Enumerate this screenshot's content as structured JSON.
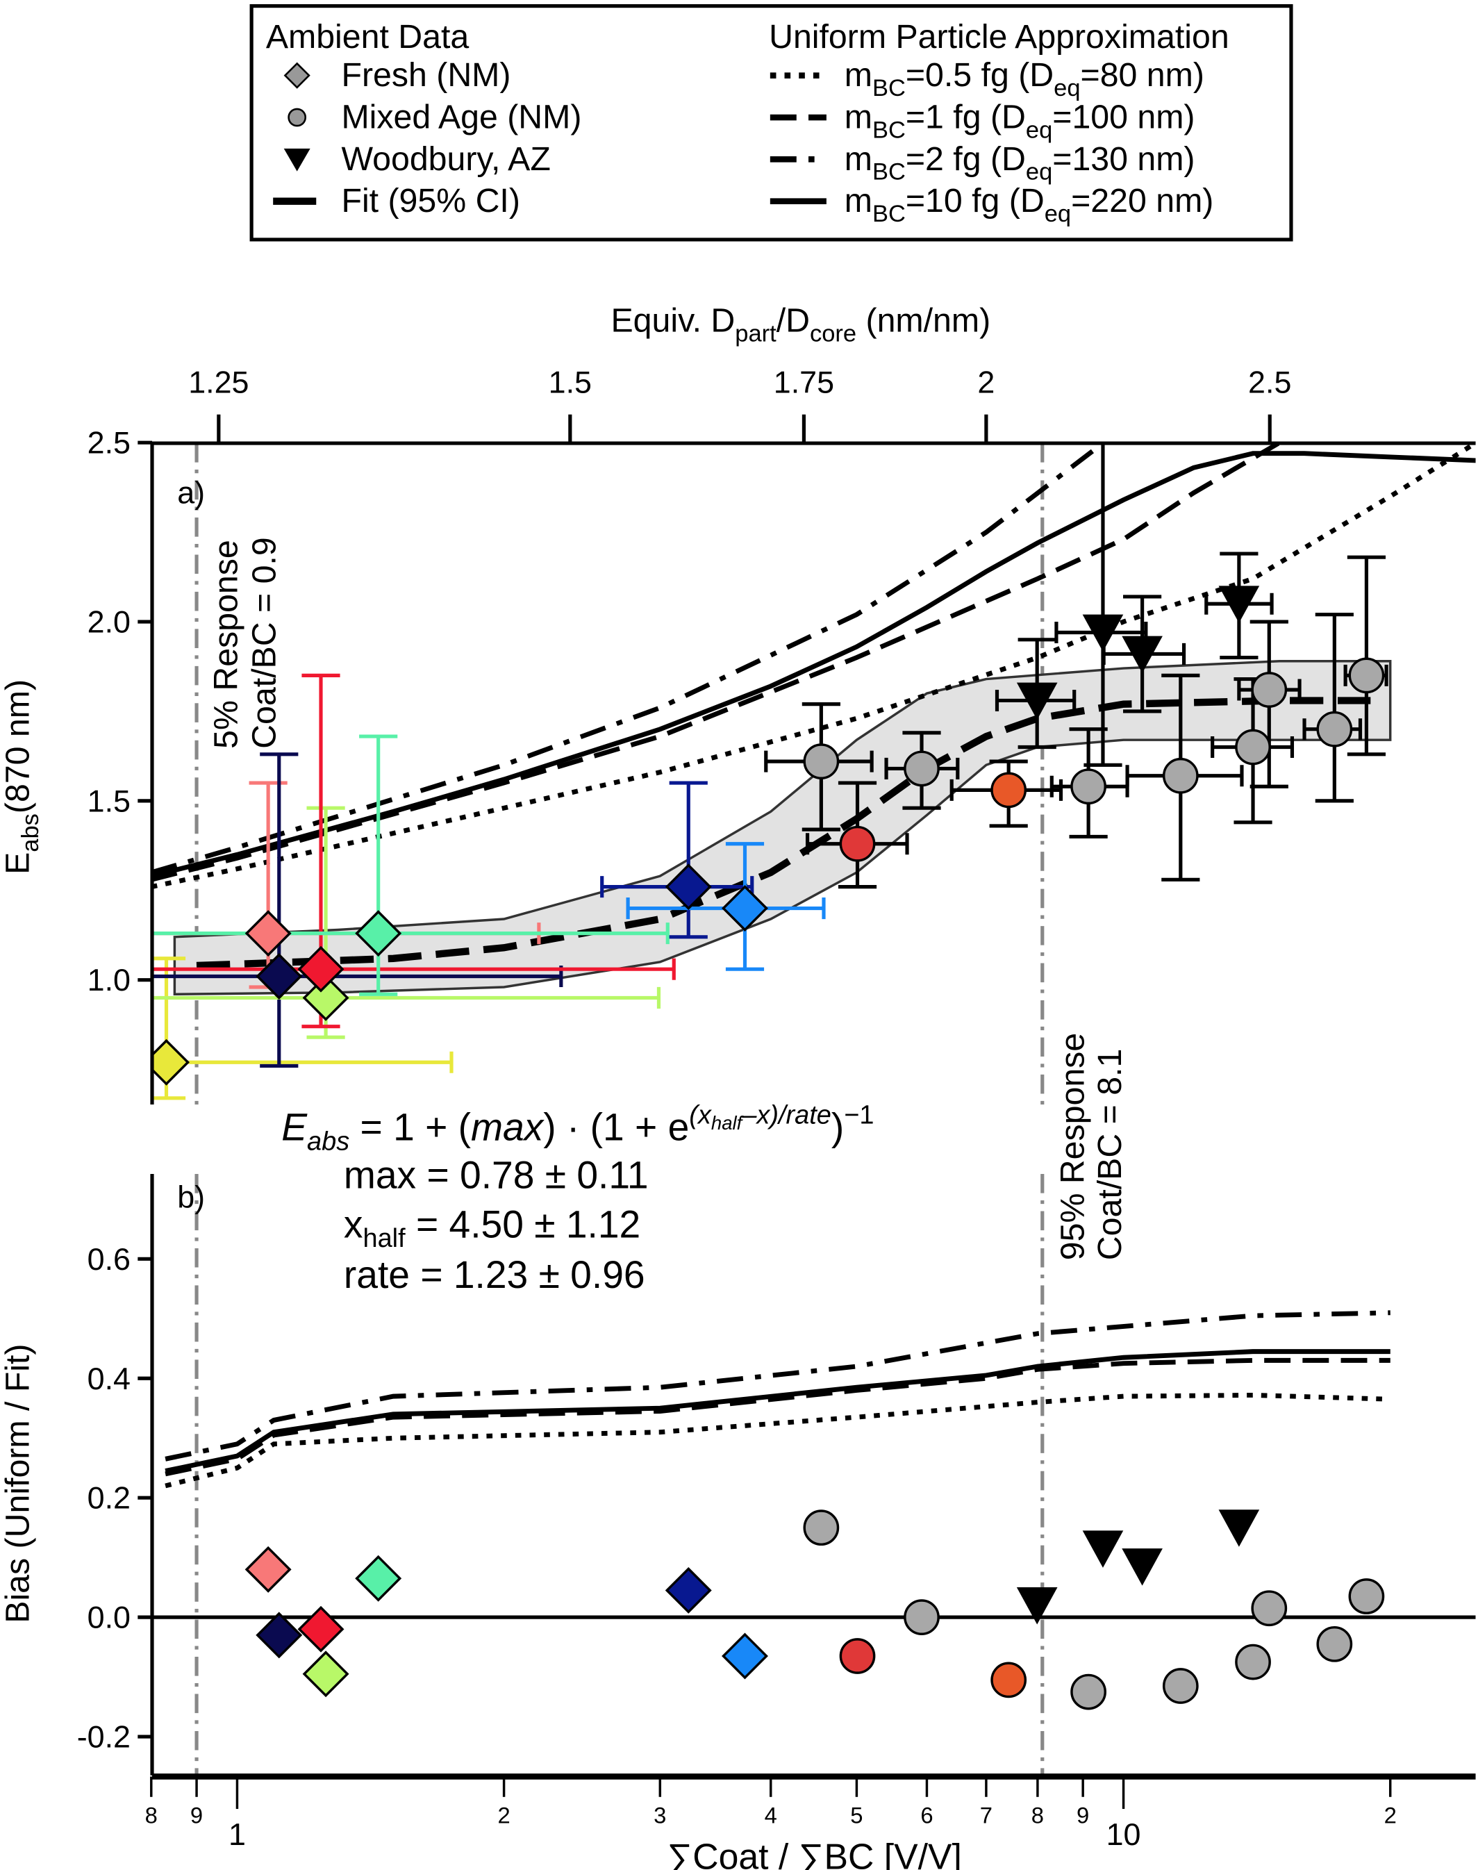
{
  "chart_data": [
    {
      "panel": "a)",
      "type": "scatter",
      "ylabel": "Eabs(870 nm)",
      "ylabel_main": "E",
      "ylabel_sub": "abs",
      "ylabel_rest": "(870 nm)",
      "ylim": [
        0.66,
        2.5
      ],
      "yticks": [
        "1.0",
        "1.5",
        "2.0",
        "2.5"
      ],
      "ytick_values": [
        1.0,
        1.5,
        2.0,
        2.5
      ],
      "xscale": "log",
      "xlim": [
        0.8,
        25
      ],
      "top_axis": {
        "label_main": "Equiv. D",
        "label_sub1": "part",
        "label_mid": "/D",
        "label_sub2": "core",
        "label_rest": " (nm/nm)",
        "ticks": [
          "1.25",
          "1.5",
          "1.75",
          "2",
          "2.5"
        ],
        "tick_values": [
          1.25,
          1.5,
          1.75,
          2,
          2.5
        ]
      },
      "annotations": {
        "low_line": {
          "x": 0.9,
          "line1": "5% Response",
          "line2": "Coat/BC = 0.9"
        },
        "high_line": {
          "x": 8.1,
          "line1": "95% Response",
          "line2": "Coat/BC = 8.1"
        }
      },
      "fresh": [
        {
          "x": 0.832,
          "y": 0.77,
          "xerr": [
            0.8,
            1.745
          ],
          "yerr": [
            0.67,
            1.06
          ],
          "color": "#e8e83a"
        },
        {
          "x": 1.084,
          "y": 1.13,
          "xerr": [
            0.8,
            2.19
          ],
          "yerr": [
            0.98,
            1.55
          ],
          "color": "#f87878"
        },
        {
          "x": 1.115,
          "y": 1.01,
          "xerr": [
            0.8,
            2.32
          ],
          "yerr": [
            0.76,
            1.63
          ],
          "color": "#0a0a50"
        },
        {
          "x": 1.259,
          "y": 0.95,
          "xerr": [
            0.8,
            2.99
          ],
          "yerr": [
            0.84,
            1.48
          ],
          "color": "#b8f868"
        },
        {
          "x": 1.243,
          "y": 1.03,
          "xerr": [
            0.8,
            3.11
          ],
          "yerr": [
            0.87,
            1.85
          ],
          "color": "#f01830"
        },
        {
          "x": 1.443,
          "y": 1.13,
          "xerr": [
            0.8,
            3.06
          ],
          "yerr": [
            0.96,
            1.68
          ],
          "color": "#58f0a8"
        },
        {
          "x": 3.23,
          "y": 1.26,
          "xerr": [
            2.58,
            3.81
          ],
          "yerr": [
            1.12,
            1.55
          ],
          "color": "#081890"
        },
        {
          "x": 3.74,
          "y": 1.2,
          "xerr": [
            2.76,
            4.59
          ],
          "yerr": [
            1.03,
            1.38
          ],
          "color": "#1888f8"
        }
      ],
      "mixed": [
        {
          "x": 4.56,
          "y": 1.61,
          "xerr": [
            3.95,
            5.2
          ],
          "yerr": [
            1.42,
            1.77
          ],
          "color": "#a8a8a8"
        },
        {
          "x": 5.01,
          "y": 1.38,
          "xerr": [
            4.4,
            5.7
          ],
          "yerr": [
            1.26,
            1.55
          ],
          "color": "#e03838"
        },
        {
          "x": 5.92,
          "y": 1.59,
          "xerr": [
            5.4,
            6.5
          ],
          "yerr": [
            1.48,
            1.69
          ],
          "color": "#a8a8a8"
        },
        {
          "x": 7.42,
          "y": 1.53,
          "xerr": [
            6.4,
            8.5
          ],
          "yerr": [
            1.43,
            1.61
          ],
          "color": "#e85828"
        },
        {
          "x": 9.13,
          "y": 1.54,
          "xerr": [
            8.3,
            10.1
          ],
          "yerr": [
            1.4,
            1.7
          ],
          "color": "#a8a8a8"
        },
        {
          "x": 11.6,
          "y": 1.57,
          "xerr": [
            10.1,
            13.6
          ],
          "yerr": [
            1.28,
            1.85
          ],
          "color": "#a8a8a8"
        },
        {
          "x": 14.0,
          "y": 1.65,
          "xerr": [
            12.6,
            15.5
          ],
          "yerr": [
            1.44,
            1.84
          ],
          "color": "#a8a8a8"
        },
        {
          "x": 14.6,
          "y": 1.81,
          "xerr": [
            13.5,
            15.8
          ],
          "yerr": [
            1.54,
            2.0
          ],
          "color": "#a8a8a8"
        },
        {
          "x": 17.3,
          "y": 1.7,
          "xerr": [
            16.0,
            18.5
          ],
          "yerr": [
            1.5,
            2.02
          ],
          "color": "#a8a8a8"
        },
        {
          "x": 18.8,
          "y": 1.85,
          "xerr": [
            17.8,
            19.8
          ],
          "yerr": [
            1.63,
            2.18
          ],
          "color": "#a8a8a8"
        }
      ],
      "woodbury": [
        {
          "x": 7.99,
          "y": 1.78,
          "xerr": [
            7.2,
            8.8
          ],
          "yerr": [
            1.65,
            1.95
          ],
          "color": "#000000"
        },
        {
          "x": 9.48,
          "y": 1.97,
          "xerr": [
            8.4,
            10.6
          ],
          "yerr": [
            1.6,
            2.5
          ],
          "color": "#000000"
        },
        {
          "x": 10.5,
          "y": 1.91,
          "xerr": [
            9.5,
            11.7
          ],
          "yerr": [
            1.75,
            2.07
          ],
          "color": "#000000"
        },
        {
          "x": 13.5,
          "y": 2.05,
          "xerr": [
            12.4,
            14.7
          ],
          "yerr": [
            1.9,
            2.19
          ],
          "color": "#000000"
        }
      ],
      "fit": [
        [
          0.9,
          1.04
        ],
        [
          1.5,
          1.06
        ],
        [
          2,
          1.09
        ],
        [
          3,
          1.17
        ],
        [
          4,
          1.3
        ],
        [
          5,
          1.45
        ],
        [
          6,
          1.59
        ],
        [
          7,
          1.68
        ],
        [
          8,
          1.73
        ],
        [
          10,
          1.77
        ],
        [
          15,
          1.78
        ],
        [
          19,
          1.78
        ]
      ],
      "fit_ci_upper": [
        [
          0.85,
          1.12
        ],
        [
          1.3,
          1.14
        ],
        [
          2,
          1.17
        ],
        [
          3,
          1.29
        ],
        [
          4,
          1.47
        ],
        [
          5,
          1.67
        ],
        [
          6,
          1.8
        ],
        [
          7,
          1.84
        ],
        [
          10,
          1.87
        ],
        [
          15,
          1.89
        ],
        [
          20,
          1.89
        ]
      ],
      "fit_ci_lower": [
        [
          0.85,
          0.96
        ],
        [
          1.3,
          0.965
        ],
        [
          2,
          0.98
        ],
        [
          3,
          1.05
        ],
        [
          4,
          1.17
        ],
        [
          5,
          1.3
        ],
        [
          6,
          1.46
        ],
        [
          7,
          1.6
        ],
        [
          8,
          1.65
        ],
        [
          10,
          1.67
        ],
        [
          20,
          1.67
        ]
      ],
      "uniform": [
        {
          "style": "dotted",
          "points": [
            [
              0.8,
              1.26
            ],
            [
              1,
              1.31
            ],
            [
              2,
              1.48
            ],
            [
              3,
              1.58
            ],
            [
              5,
              1.73
            ],
            [
              8,
              1.9
            ],
            [
              10,
              2.0
            ],
            [
              14,
              2.12
            ],
            [
              20,
              2.35
            ],
            [
              25,
              2.5
            ]
          ]
        },
        {
          "style": "dashed",
          "points": [
            [
              0.8,
              1.28
            ],
            [
              1,
              1.34
            ],
            [
              2,
              1.55
            ],
            [
              3,
              1.68
            ],
            [
              5,
              1.9
            ],
            [
              8,
              2.12
            ],
            [
              10,
              2.23
            ],
            [
              12,
              2.36
            ],
            [
              15,
              2.5
            ]
          ]
        },
        {
          "style": "dashdot",
          "points": [
            [
              0.8,
              1.3
            ],
            [
              1,
              1.37
            ],
            [
              2,
              1.6
            ],
            [
              3,
              1.76
            ],
            [
              5,
              2.02
            ],
            [
              7,
              2.25
            ],
            [
              9.5,
              2.5
            ]
          ]
        },
        {
          "style": "solid",
          "points": [
            [
              0.8,
              1.29
            ],
            [
              1,
              1.35
            ],
            [
              1.5,
              1.47
            ],
            [
              2,
              1.56
            ],
            [
              3,
              1.7
            ],
            [
              4,
              1.82
            ],
            [
              5,
              1.93
            ],
            [
              6,
              2.04
            ],
            [
              7,
              2.14
            ],
            [
              8,
              2.22
            ],
            [
              10,
              2.34
            ],
            [
              12,
              2.43
            ],
            [
              14,
              2.47
            ],
            [
              16,
              2.47
            ],
            [
              20,
              2.46
            ],
            [
              25,
              2.45
            ]
          ]
        }
      ]
    },
    {
      "panel": "b)",
      "type": "scatter",
      "ylabel": "Bias (Uniform / Fit)",
      "ylim": [
        -0.265,
        0.745
      ],
      "yticks": [
        "-0.2",
        "0.0",
        "0.2",
        "0.4",
        "0.6"
      ],
      "ytick_values": [
        -0.2,
        0,
        0.2,
        0.4,
        0.6
      ],
      "xscale": "log",
      "xlim": [
        0.8,
        25
      ],
      "xlabel": "∑Coat / ∑BC [V/V]",
      "xticks_minor": [
        "8",
        "9",
        "2",
        "3",
        "4",
        "5",
        "6",
        "7",
        "8",
        "9",
        "2"
      ],
      "xtick_minor_values": [
        0.8,
        0.9,
        2,
        3,
        4,
        5,
        6,
        7,
        8,
        9,
        20
      ],
      "xticks_major": [
        "1",
        "10"
      ],
      "xtick_major_values": [
        1,
        10
      ],
      "fresh": [
        {
          "x": 1.084,
          "y": 0.08,
          "color": "#f87878"
        },
        {
          "x": 1.115,
          "y": -0.03,
          "color": "#0a0a50"
        },
        {
          "x": 1.243,
          "y": -0.02,
          "color": "#f01830"
        },
        {
          "x": 1.259,
          "y": -0.095,
          "color": "#b8f868"
        },
        {
          "x": 1.443,
          "y": 0.065,
          "color": "#58f0a8"
        },
        {
          "x": 3.23,
          "y": 0.045,
          "color": "#081890"
        },
        {
          "x": 3.74,
          "y": -0.065,
          "color": "#1888f8"
        }
      ],
      "mixed": [
        {
          "x": 4.56,
          "y": 0.15,
          "color": "#a8a8a8"
        },
        {
          "x": 5.01,
          "y": -0.065,
          "color": "#e03838"
        },
        {
          "x": 5.92,
          "y": 0.0,
          "color": "#a8a8a8"
        },
        {
          "x": 7.42,
          "y": -0.105,
          "color": "#e85828"
        },
        {
          "x": 9.13,
          "y": -0.125,
          "color": "#a8a8a8"
        },
        {
          "x": 11.6,
          "y": -0.115,
          "color": "#a8a8a8"
        },
        {
          "x": 14.0,
          "y": -0.075,
          "color": "#a8a8a8"
        },
        {
          "x": 14.6,
          "y": 0.015,
          "color": "#a8a8a8"
        },
        {
          "x": 17.3,
          "y": -0.045,
          "color": "#a8a8a8"
        },
        {
          "x": 18.8,
          "y": 0.035,
          "color": "#a8a8a8"
        }
      ],
      "woodbury": [
        {
          "x": 7.99,
          "y": 0.02,
          "color": "#000000"
        },
        {
          "x": 9.48,
          "y": 0.115,
          "color": "#000000"
        },
        {
          "x": 10.5,
          "y": 0.085,
          "color": "#000000"
        },
        {
          "x": 13.5,
          "y": 0.15,
          "color": "#000000"
        }
      ],
      "uniform": [
        {
          "style": "dotted",
          "points": [
            [
              0.83,
              0.22
            ],
            [
              1,
              0.25
            ],
            [
              1.1,
              0.29
            ],
            [
              1.5,
              0.3
            ],
            [
              3,
              0.31
            ],
            [
              5,
              0.335
            ],
            [
              8,
              0.36
            ],
            [
              10,
              0.37
            ],
            [
              14,
              0.372
            ],
            [
              20,
              0.365
            ]
          ]
        },
        {
          "style": "dashed",
          "points": [
            [
              0.83,
              0.24
            ],
            [
              1,
              0.265
            ],
            [
              1.1,
              0.305
            ],
            [
              1.5,
              0.335
            ],
            [
              3,
              0.345
            ],
            [
              5,
              0.38
            ],
            [
              7,
              0.4
            ],
            [
              8,
              0.415
            ],
            [
              10,
              0.425
            ],
            [
              14,
              0.43
            ],
            [
              20,
              0.43
            ]
          ]
        },
        {
          "style": "dashdot",
          "points": [
            [
              0.83,
              0.265
            ],
            [
              1,
              0.29
            ],
            [
              1.1,
              0.33
            ],
            [
              1.5,
              0.37
            ],
            [
              3,
              0.385
            ],
            [
              5,
              0.42
            ],
            [
              8,
              0.475
            ],
            [
              14,
              0.505
            ],
            [
              20,
              0.51
            ]
          ]
        },
        {
          "style": "solid",
          "points": [
            [
              0.83,
              0.245
            ],
            [
              1,
              0.27
            ],
            [
              1.1,
              0.31
            ],
            [
              1.5,
              0.34
            ],
            [
              3,
              0.35
            ],
            [
              5,
              0.385
            ],
            [
              7,
              0.405
            ],
            [
              8,
              0.42
            ],
            [
              10,
              0.435
            ],
            [
              14,
              0.445
            ],
            [
              20,
              0.445
            ]
          ]
        }
      ]
    }
  ],
  "equation": {
    "lhs": "E",
    "lhs_sub": "abs",
    "middle": " = 1 + (",
    "max": "max",
    "after_max": ") · (1 + e",
    "exp": "(x",
    "exp_sub": "half",
    "exp_rest": "–x)/rate",
    "tail": ")",
    "tail_exp": "−1",
    "params": [
      {
        "name": "max",
        "sub": "",
        "value": " = 0.78 ± 0.11"
      },
      {
        "name": "x",
        "sub": "half",
        "value": "  = 4.50 ± 1.12"
      },
      {
        "name": "rate",
        "sub": "",
        "value": "  = 1.23 ± 0.96"
      }
    ]
  },
  "legend": {
    "left_title": "Ambient Data",
    "left_items": [
      "Fresh (NM)",
      "Mixed Age (NM)",
      "Woodbury, AZ",
      "Fit (95% CI)"
    ],
    "right_title": "Uniform Particle Approximation",
    "right_items": [
      {
        "m": "m",
        "msub": "BC",
        "val": "=0.5 fg (D",
        "dsub": "eq",
        "rest": "=80 nm)",
        "style": "dotted"
      },
      {
        "m": "m",
        "msub": "BC",
        "val": "=1 fg (D",
        "dsub": "eq",
        "rest": "=100 nm)",
        "style": "dashed"
      },
      {
        "m": "m",
        "msub": "BC",
        "val": "=2 fg (D",
        "dsub": "eq",
        "rest": "=130 nm)",
        "style": "dashdot"
      },
      {
        "m": "m",
        "msub": "BC",
        "val": "=10 fg (D",
        "dsub": "eq",
        "rest": "=220 nm)",
        "style": "solid"
      }
    ]
  }
}
